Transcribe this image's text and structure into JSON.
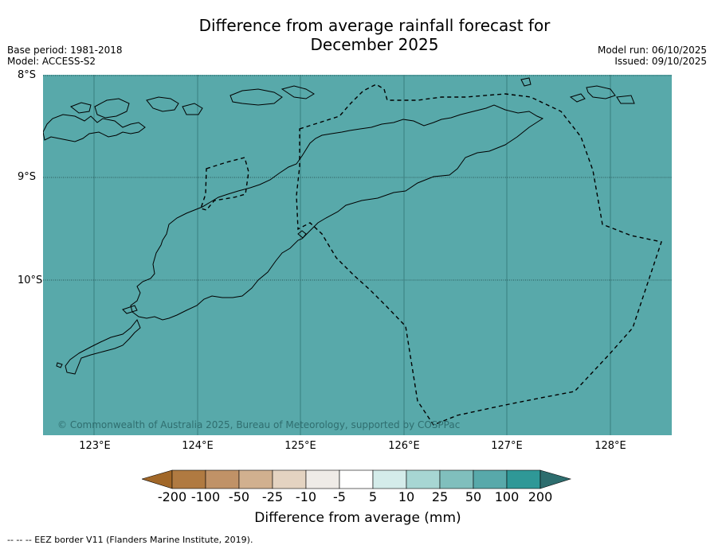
{
  "title": {
    "line1": "Difference from average rainfall forecast for",
    "line2": "December 2025"
  },
  "meta_left": {
    "base_period": "Base period: 1981-2018",
    "model": "Model: ACCESS-S2"
  },
  "meta_right": {
    "model_run": "Model run: 06/10/2025",
    "issued": "Issued: 09/10/2025"
  },
  "map": {
    "lat_labels": [
      "8°S",
      "9°S",
      "10°S"
    ],
    "lon_labels": [
      "123°E",
      "124°E",
      "125°E",
      "126°E",
      "127°E",
      "128°E"
    ],
    "fill_category": "50 to 100",
    "fill_color": "#58a9aa",
    "copyright": "© Commonwealth of Australia 2025, Bureau of Meteorology, supported by COSPPac"
  },
  "colorbar": {
    "label": "Difference from average (mm)",
    "ticks": [
      "-200",
      "-100",
      "-50",
      "-25",
      "-10",
      "-5",
      "5",
      "10",
      "25",
      "50",
      "100",
      "200"
    ],
    "colors": [
      "#a16728",
      "#b07a41",
      "#c09267",
      "#d1b08f",
      "#e4d3c1",
      "#efebe7",
      "#ffffff",
      "#d4ecea",
      "#a7d6d3",
      "#80bfbd",
      "#58a9aa",
      "#2f9897",
      "#2d6d6e"
    ]
  },
  "footnote": "--  --  -- EEZ border V11 (Flanders Marine Institute, 2019)."
}
